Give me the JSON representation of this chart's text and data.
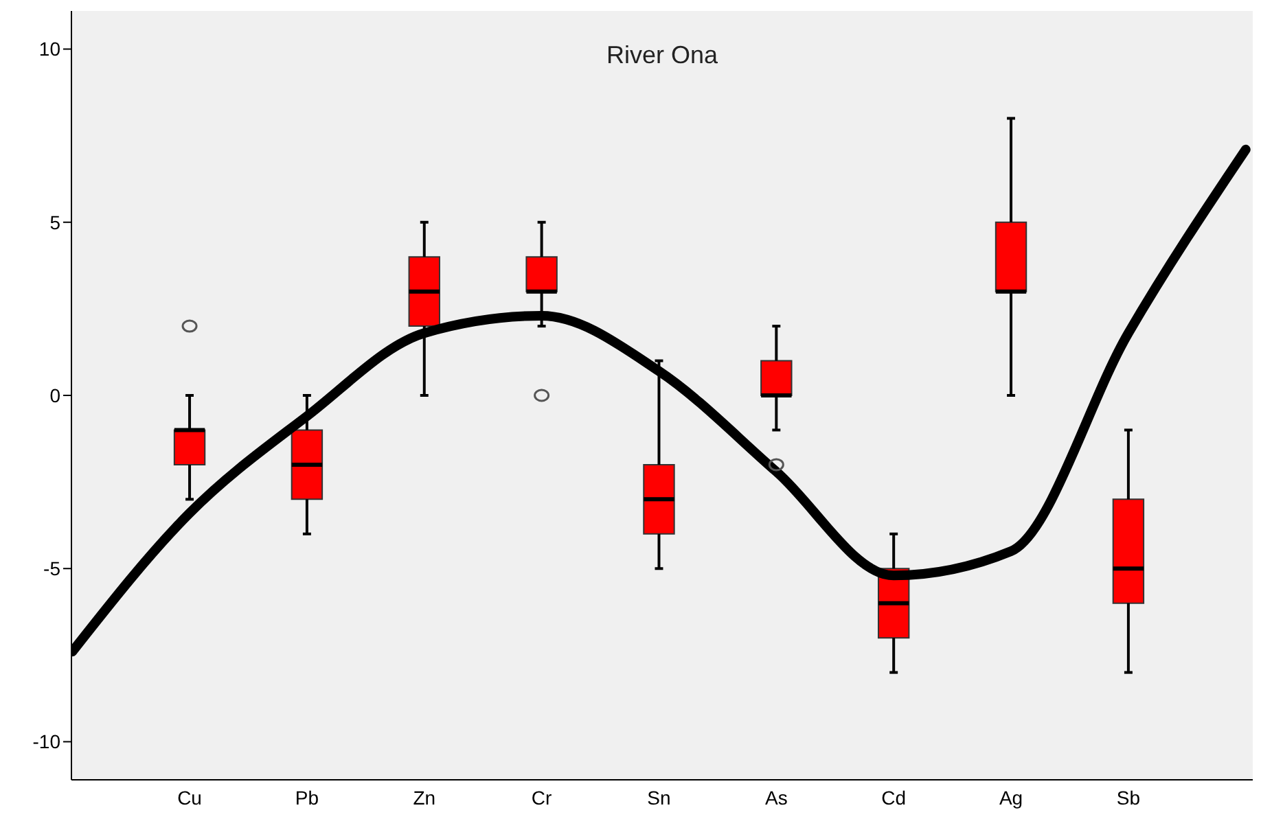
{
  "chart_data": {
    "type": "box",
    "title": "River Ona",
    "categories": [
      null,
      "Cu",
      "Pb",
      "Zn",
      "Cr",
      "Sn",
      "As",
      "Cd",
      "Ag",
      "Sb",
      null
    ],
    "ylim": [
      -11.1,
      11.1
    ],
    "yticks": [
      -10,
      -5,
      0,
      5,
      10
    ],
    "grid": false,
    "series": [
      {
        "color": "#ff0000",
        "boxes": [
          null,
          {
            "low": -3,
            "q1": -2,
            "median": -1,
            "q3": -1,
            "high": 0,
            "outliers": [
              2
            ]
          },
          {
            "low": -4,
            "q1": -3,
            "median": -2,
            "q3": -1,
            "high": 0
          },
          {
            "low": 0,
            "q1": 2,
            "median": 3,
            "q3": 4,
            "high": 5
          },
          {
            "low": 2,
            "q1": 3,
            "median": 3,
            "q3": 4,
            "high": 5,
            "outliers": [
              0
            ]
          },
          {
            "low": -5,
            "q1": -4,
            "median": -3,
            "q3": -2,
            "high": 1
          },
          {
            "low": -1,
            "q1": 0,
            "median": 0,
            "q3": 1,
            "high": 2,
            "outliers": [
              -2
            ]
          },
          {
            "low": -8,
            "q1": -7,
            "median": -6,
            "q3": -5,
            "high": -4
          },
          {
            "low": 0,
            "q1": 3,
            "median": 3,
            "q3": 5,
            "high": 8
          },
          {
            "low": -8,
            "q1": -6,
            "median": -5,
            "q3": -3,
            "high": -1
          },
          null
        ]
      },
      {
        "type": "line",
        "color": "#000000",
        "values": [
          -7.4,
          -3.4,
          -0.6,
          1.8,
          2.3,
          0.7,
          -2.2,
          -5.2,
          -4.5,
          1.8,
          7.1
        ]
      }
    ]
  }
}
